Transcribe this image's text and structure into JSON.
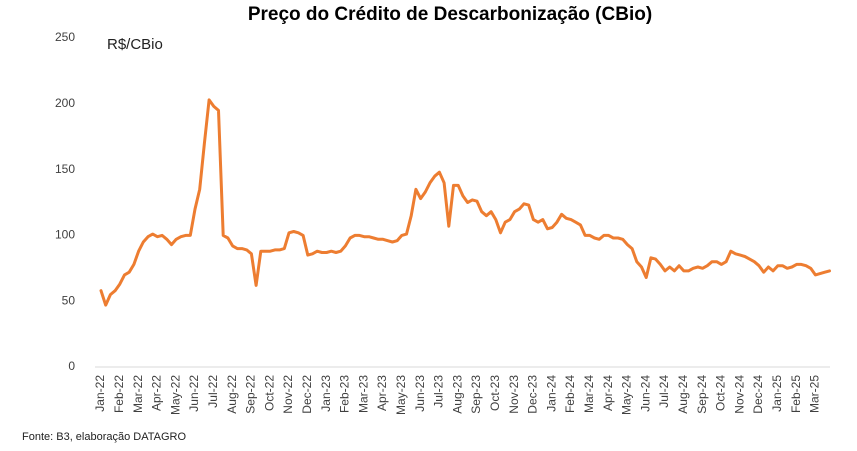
{
  "chart_data": {
    "type": "line",
    "title": "Preço do Crédito de Descarbonização (CBio)",
    "y_label": "R$/CBio",
    "source": "Fonte: B3, elaboração DATAGRO",
    "color": "#ed7d31",
    "ylim": [
      0,
      250
    ],
    "yticks": [
      0,
      50,
      100,
      150,
      200,
      250
    ],
    "grid": false,
    "categories": [
      "Jan-22",
      null,
      null,
      null,
      "Feb-22",
      null,
      null,
      null,
      "Mar-22",
      null,
      null,
      null,
      "Apr-22",
      null,
      null,
      null,
      "May-22",
      null,
      null,
      null,
      "Jun-22",
      null,
      null,
      null,
      "Jul-22",
      null,
      null,
      null,
      "Aug-22",
      null,
      null,
      null,
      "Sep-22",
      null,
      null,
      null,
      "Oct-22",
      null,
      null,
      null,
      "Nov-22",
      null,
      null,
      null,
      "Dec-22",
      null,
      null,
      null,
      "Jan-23",
      null,
      null,
      null,
      "Feb-23",
      null,
      null,
      null,
      "Mar-23",
      null,
      null,
      null,
      "Apr-23",
      null,
      null,
      null,
      "May-23",
      null,
      null,
      null,
      "Jun-23",
      null,
      null,
      null,
      "Jul-23",
      null,
      null,
      null,
      "Aug-23",
      null,
      null,
      null,
      "Sep-23",
      null,
      null,
      null,
      "Oct-23",
      null,
      null,
      null,
      "Nov-23",
      null,
      null,
      null,
      "Dec-23",
      null,
      null,
      null,
      "Jan-24",
      null,
      null,
      null,
      "Feb-24",
      null,
      null,
      null,
      "Mar-24",
      null,
      null,
      null,
      "Apr-24",
      null,
      null,
      null,
      "May-24",
      null,
      null,
      null,
      "Jun-24",
      null,
      null,
      null,
      "Jul-24",
      null,
      null,
      null,
      "Aug-24",
      null,
      null,
      null,
      "Sep-24",
      null,
      null,
      null,
      "Oct-24",
      null,
      null,
      null,
      "Nov-24",
      null,
      null,
      null,
      "Dec-24",
      null,
      null,
      null,
      "Jan-25",
      null,
      null,
      null,
      "Feb-25",
      null,
      null,
      null,
      "Mar-25",
      null,
      null,
      null
    ],
    "values": [
      58,
      47,
      55,
      58,
      63,
      70,
      72,
      78,
      88,
      95,
      99,
      101,
      99,
      100,
      97,
      93,
      97,
      99,
      100,
      100,
      120,
      135,
      170,
      203,
      198,
      195,
      100,
      98,
      92,
      90,
      90,
      89,
      86,
      62,
      88,
      88,
      88,
      89,
      89,
      90,
      102,
      103,
      102,
      100,
      85,
      86,
      88,
      87,
      87,
      88,
      87,
      88,
      92,
      98,
      100,
      100,
      99,
      99,
      98,
      97,
      97,
      96,
      95,
      96,
      100,
      101,
      115,
      135,
      128,
      133,
      140,
      145,
      148,
      140,
      107,
      138,
      138,
      130,
      125,
      127,
      126,
      118,
      115,
      118,
      112,
      102,
      110,
      112,
      118,
      120,
      124,
      123,
      112,
      110,
      112,
      105,
      106,
      110,
      116,
      113,
      112,
      110,
      108,
      100,
      100,
      98,
      97,
      100,
      100,
      98,
      98,
      97,
      93,
      90,
      80,
      76,
      68,
      83,
      82,
      78,
      73,
      76,
      73,
      77,
      73,
      73,
      75,
      76,
      75,
      77,
      80,
      80,
      78,
      80,
      88,
      86,
      85,
      84,
      82,
      80,
      77,
      72,
      76,
      73,
      77,
      77,
      75,
      76,
      78,
      78,
      77,
      75,
      70,
      71,
      72,
      73
    ]
  }
}
